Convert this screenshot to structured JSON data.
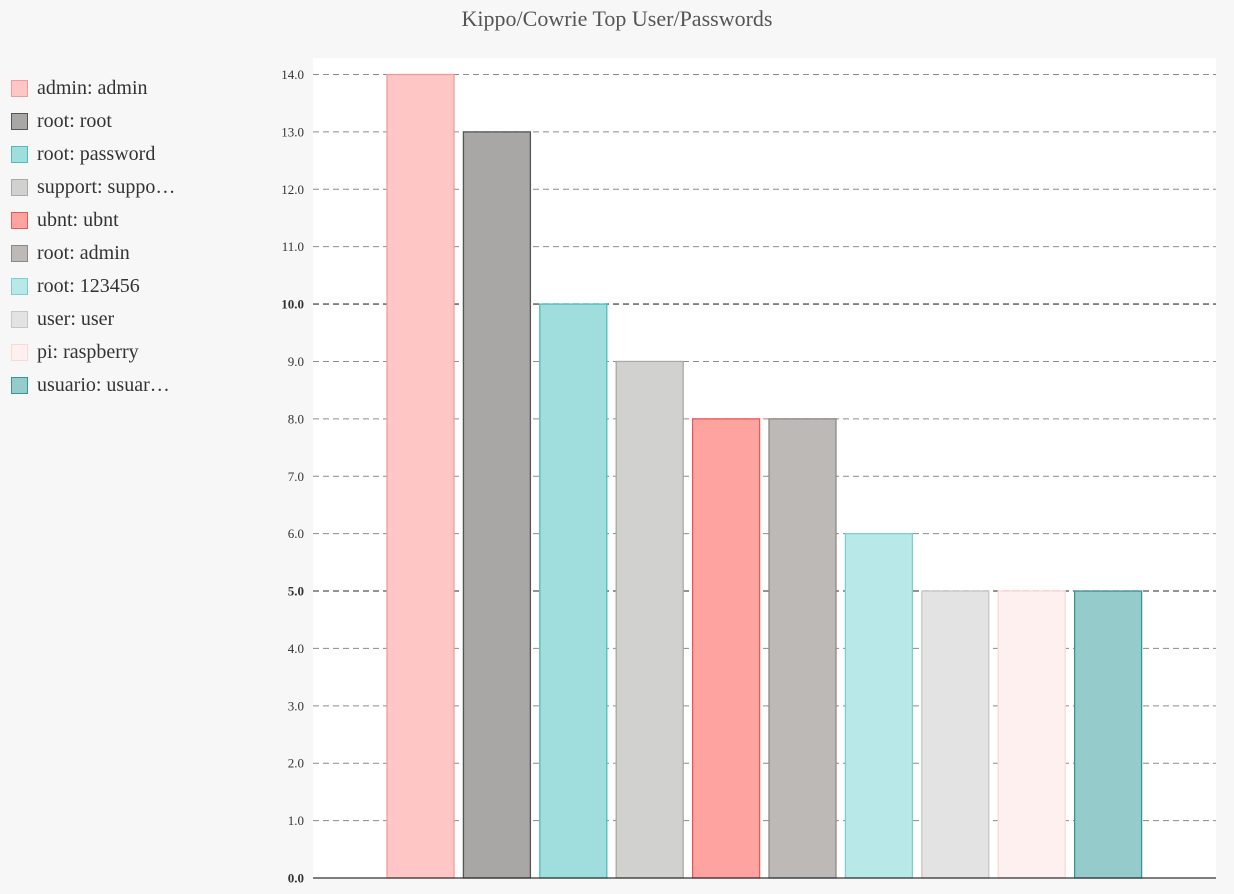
{
  "chart_data": {
    "type": "bar",
    "title": "Kippo/Cowrie Top User/Passwords",
    "xlabel": "",
    "ylabel": "",
    "ylim": [
      0,
      14
    ],
    "ytick_step": 1,
    "major_ticks": [
      0,
      5,
      10
    ],
    "grid": true,
    "legend_position": "left",
    "categories": [
      "admin: admin",
      "root: root",
      "root: password",
      "support: suppo…",
      "ubnt: ubnt",
      "root: admin",
      "root: 123456",
      "user: user",
      "pi: raspberry",
      "usuario: usuar…"
    ],
    "values": [
      14,
      13,
      10,
      9,
      8,
      8,
      6,
      5,
      5,
      5
    ],
    "colors": [
      {
        "fill": "#ffc6c6",
        "stroke": "#f49a9a"
      },
      {
        "fill": "#a8a7a5",
        "stroke": "#555555"
      },
      {
        "fill": "#a0dedd",
        "stroke": "#4dbdbb"
      },
      {
        "fill": "#d1d2cf",
        "stroke": "#a9aaa7"
      },
      {
        "fill": "#ffa3a0",
        "stroke": "#e85a56"
      },
      {
        "fill": "#bdb9b6",
        "stroke": "#8e8884"
      },
      {
        "fill": "#b9e8e8",
        "stroke": "#7dcfcf"
      },
      {
        "fill": "#e3e3e3",
        "stroke": "#c6c6c6"
      },
      {
        "fill": "#fff0f0",
        "stroke": "#fbd8d8"
      },
      {
        "fill": "#96cbcb",
        "stroke": "#3a9494"
      }
    ]
  }
}
